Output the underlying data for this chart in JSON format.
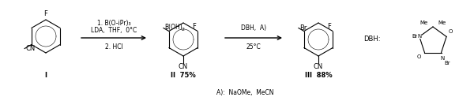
{
  "figsize": [
    6.0,
    1.28
  ],
  "dpi": 100,
  "bg_color": "#ffffff",
  "arrow1_top1": "1. B(O-iPr)₃",
  "arrow1_top2": "LDA,  THF,  0°C",
  "arrow1_bot": "2. HCl",
  "arrow2_top": "DBH,  A)",
  "arrow2_bot": "25°C",
  "label_I": "I",
  "label_II": "II  75%",
  "label_III": "III  88%",
  "footnote": "A):  NaOMe,  MeCN"
}
